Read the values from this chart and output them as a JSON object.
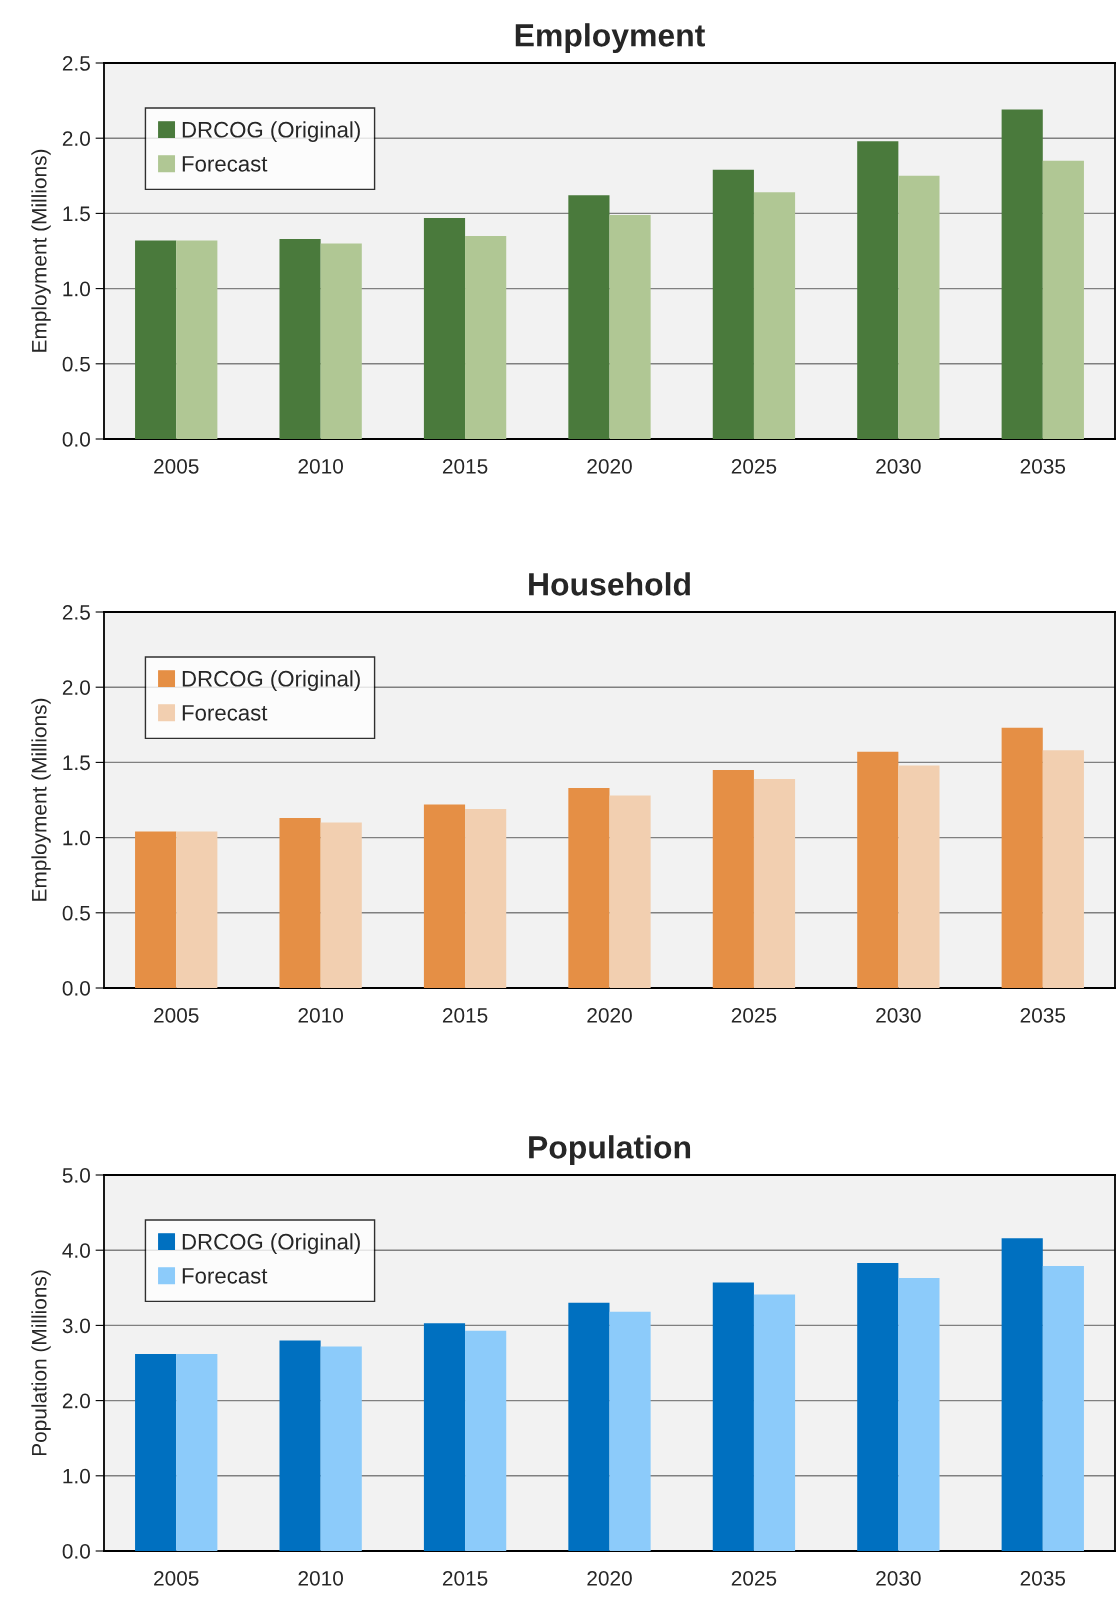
{
  "chart_data": [
    {
      "type": "bar",
      "title": "Employment",
      "ylabel": "Employment (Millions)",
      "categories": [
        "2005",
        "2010",
        "2015",
        "2020",
        "2025",
        "2030",
        "2035"
      ],
      "series": [
        {
          "name": "DRCOG (Original)",
          "color": "#4a7a3c",
          "values": [
            1.32,
            1.33,
            1.47,
            1.62,
            1.79,
            1.98,
            2.19
          ]
        },
        {
          "name": "Forecast",
          "color": "#b0c794",
          "values": [
            1.32,
            1.3,
            1.35,
            1.49,
            1.64,
            1.75,
            1.85
          ]
        }
      ],
      "ylim": [
        0,
        2.5
      ],
      "yticks": [
        {
          "value": 0,
          "label": "0.0"
        },
        0.5,
        {
          "value": 1,
          "label": "1.0"
        },
        1.5,
        {
          "value": 2,
          "label": "2.0"
        },
        2.5
      ],
      "grid": "y",
      "legend": "top left"
    },
    {
      "type": "bar",
      "title": "Household",
      "ylabel": "Employment (Millions)",
      "categories": [
        "2005",
        "2010",
        "2015",
        "2020",
        "2025",
        "2030",
        "2035"
      ],
      "series": [
        {
          "name": "DRCOG (Original)",
          "color": "#e58f45",
          "values": [
            1.04,
            1.13,
            1.22,
            1.33,
            1.45,
            1.57,
            1.73
          ]
        },
        {
          "name": "Forecast",
          "color": "#f2cfb0",
          "values": [
            1.04,
            1.1,
            1.19,
            1.28,
            1.39,
            1.48,
            1.58
          ]
        }
      ],
      "ylim": [
        0,
        2.5
      ],
      "yticks": [
        {
          "value": 0,
          "label": "0.0"
        },
        0.5,
        {
          "value": 1,
          "label": "1.0"
        },
        1.5,
        {
          "value": 2,
          "label": "2.0"
        },
        2.5
      ],
      "grid": "y",
      "legend": "top left"
    },
    {
      "type": "bar",
      "title": "Population",
      "ylabel": "Population (Millions)",
      "categories": [
        "2005",
        "2010",
        "2015",
        "2020",
        "2025",
        "2030",
        "2035"
      ],
      "series": [
        {
          "name": "DRCOG (Original)",
          "color": "#0070c0",
          "values": [
            2.62,
            2.8,
            3.03,
            3.3,
            3.57,
            3.83,
            4.16
          ]
        },
        {
          "name": "Forecast",
          "color": "#8ccbfa",
          "values": [
            2.62,
            2.72,
            2.93,
            3.18,
            3.41,
            3.63,
            3.79
          ]
        }
      ],
      "ylim": [
        0,
        5
      ],
      "yticks": [
        {
          "value": 0,
          "label": "0.0"
        },
        {
          "value": 1,
          "label": "1.0"
        },
        {
          "value": 2,
          "label": "2.0"
        },
        {
          "value": 3,
          "label": "3.0"
        },
        {
          "value": 4,
          "label": "4.0"
        },
        {
          "value": 5,
          "label": "5.0"
        }
      ],
      "grid": "y",
      "legend": "top left"
    }
  ]
}
